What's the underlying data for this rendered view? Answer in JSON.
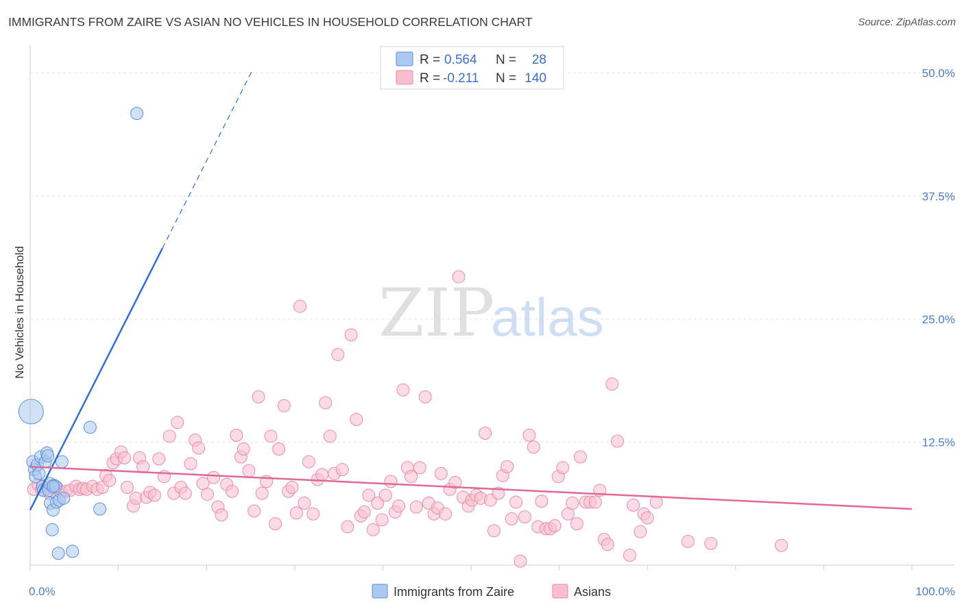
{
  "title": "IMMIGRANTS FROM ZAIRE VS ASIAN NO VEHICLES IN HOUSEHOLD CORRELATION CHART",
  "source": "Source: ZipAtlas.com",
  "watermark": {
    "zip": "ZIP",
    "atlas": "atlas"
  },
  "colors": {
    "blue_fill": "#aac8f0",
    "blue_stroke": "#5b8fd6",
    "blue_line": "#2f6fcf",
    "pink_fill": "#f7bfd0",
    "pink_stroke": "#e98aa8",
    "pink_line": "#e0679a",
    "tick_text": "#4a7cc7",
    "grid": "#e3e3e3"
  },
  "legend": {
    "rows": [
      {
        "r_label": "R =",
        "r_value": "0.564",
        "n_label": "N =",
        "n_value": "28"
      },
      {
        "r_label": "R =",
        "r_value": "-0.211",
        "n_label": "N =",
        "n_value": "140"
      }
    ]
  },
  "chart_data": {
    "type": "scatter",
    "ylabel": "No Vehicles in Household",
    "xlim": [
      0,
      100
    ],
    "ylim": [
      0,
      52
    ],
    "x_tick_labels": [
      {
        "value": 0,
        "label": "0.0%"
      },
      {
        "value": 100,
        "label": "100.0%"
      }
    ],
    "y_tick_labels": [
      {
        "value": 12.5,
        "label": "12.5%"
      },
      {
        "value": 25.0,
        "label": "25.0%"
      },
      {
        "value": 37.5,
        "label": "37.5%"
      },
      {
        "value": 50.0,
        "label": "50.0%"
      }
    ],
    "grid": true,
    "legend_position": "top-center",
    "series": [
      {
        "name": "Immigrants from Zaire",
        "points": [
          [
            0.1,
            15.6,
            3
          ],
          [
            0.3,
            10.5,
            1
          ],
          [
            0.5,
            9.7,
            1
          ],
          [
            0.6,
            9.0,
            1
          ],
          [
            0.8,
            10.2,
            1
          ],
          [
            1.0,
            9.3,
            1
          ],
          [
            1.2,
            11.0,
            1
          ],
          [
            1.4,
            8.0,
            1
          ],
          [
            1.5,
            7.6,
            1
          ],
          [
            1.7,
            10.5,
            1
          ],
          [
            1.9,
            11.4,
            1
          ],
          [
            2.0,
            11.1,
            1
          ],
          [
            2.1,
            7.6,
            1
          ],
          [
            2.2,
            8.3,
            1
          ],
          [
            2.3,
            6.3,
            1
          ],
          [
            2.5,
            3.6,
            1
          ],
          [
            2.6,
            5.6,
            1
          ],
          [
            2.7,
            8.1,
            1
          ],
          [
            2.9,
            8.0,
            1
          ],
          [
            3.0,
            6.4,
            1
          ],
          [
            3.3,
            6.6,
            1
          ],
          [
            2.6,
            8.0,
            1
          ],
          [
            3.8,
            6.8,
            1
          ],
          [
            3.6,
            10.5,
            1
          ],
          [
            6.8,
            14.0,
            1
          ],
          [
            7.9,
            5.7,
            1
          ],
          [
            3.2,
            1.2,
            1
          ],
          [
            4.8,
            1.4,
            1
          ],
          [
            12.1,
            45.9,
            1
          ]
        ]
      },
      {
        "name": "Asians",
        "points": [
          [
            0.4,
            7.7,
            1
          ],
          [
            0.9,
            8.2,
            1
          ],
          [
            1.3,
            7.7,
            1
          ],
          [
            1.8,
            8.1,
            1
          ],
          [
            2.2,
            7.3,
            1
          ],
          [
            2.5,
            7.9,
            1
          ],
          [
            3.0,
            7.9,
            1
          ],
          [
            3.5,
            7.4,
            1
          ],
          [
            4.0,
            7.5,
            1
          ],
          [
            4.5,
            7.6,
            1
          ],
          [
            5.2,
            8.0,
            1
          ],
          [
            5.6,
            7.7,
            1
          ],
          [
            6.0,
            7.8,
            1
          ],
          [
            6.4,
            7.7,
            1
          ],
          [
            7.1,
            8.0,
            1
          ],
          [
            7.6,
            7.7,
            1
          ],
          [
            8.2,
            7.9,
            1
          ],
          [
            8.6,
            9.1,
            1
          ],
          [
            9.0,
            8.6,
            1
          ],
          [
            9.4,
            10.4,
            1
          ],
          [
            9.8,
            10.8,
            1
          ],
          [
            10.3,
            11.5,
            1
          ],
          [
            10.7,
            10.9,
            1
          ],
          [
            11.0,
            7.9,
            1
          ],
          [
            11.7,
            6.0,
            1
          ],
          [
            12.0,
            6.8,
            1
          ],
          [
            12.4,
            10.9,
            1
          ],
          [
            12.8,
            10.0,
            1
          ],
          [
            13.2,
            6.9,
            1
          ],
          [
            13.6,
            7.4,
            1
          ],
          [
            14.1,
            7.1,
            1
          ],
          [
            14.6,
            10.8,
            1
          ],
          [
            15.2,
            9.0,
            1
          ],
          [
            15.8,
            13.1,
            1
          ],
          [
            16.3,
            7.3,
            1
          ],
          [
            16.7,
            14.5,
            1
          ],
          [
            17.1,
            7.9,
            1
          ],
          [
            17.6,
            7.3,
            1
          ],
          [
            18.2,
            10.3,
            1
          ],
          [
            18.7,
            12.7,
            1
          ],
          [
            19.1,
            11.9,
            1
          ],
          [
            19.6,
            8.3,
            1
          ],
          [
            20.1,
            7.2,
            1
          ],
          [
            20.8,
            8.9,
            1
          ],
          [
            21.3,
            5.9,
            1
          ],
          [
            21.7,
            5.1,
            1
          ],
          [
            22.3,
            8.2,
            1
          ],
          [
            22.9,
            7.5,
            1
          ],
          [
            23.4,
            13.2,
            1
          ],
          [
            23.9,
            11.0,
            1
          ],
          [
            24.2,
            11.8,
            1
          ],
          [
            24.8,
            9.6,
            1
          ],
          [
            25.4,
            5.5,
            1
          ],
          [
            25.9,
            17.1,
            1
          ],
          [
            26.3,
            7.3,
            1
          ],
          [
            26.8,
            8.5,
            1
          ],
          [
            27.3,
            13.1,
            1
          ],
          [
            27.8,
            4.2,
            1
          ],
          [
            28.2,
            11.8,
            1
          ],
          [
            28.8,
            16.2,
            1
          ],
          [
            29.3,
            7.5,
            1
          ],
          [
            29.7,
            7.9,
            1
          ],
          [
            30.2,
            5.3,
            1
          ],
          [
            30.6,
            26.3,
            1
          ],
          [
            31.1,
            6.3,
            1
          ],
          [
            31.6,
            10.5,
            1
          ],
          [
            32.1,
            5.2,
            1
          ],
          [
            32.6,
            8.7,
            1
          ],
          [
            33.1,
            9.2,
            1
          ],
          [
            33.5,
            16.5,
            1
          ],
          [
            34.0,
            13.1,
            1
          ],
          [
            34.5,
            9.3,
            1
          ],
          [
            34.9,
            21.4,
            1
          ],
          [
            35.4,
            9.7,
            1
          ],
          [
            36.0,
            3.9,
            1
          ],
          [
            36.4,
            23.4,
            1
          ],
          [
            37.0,
            14.8,
            1
          ],
          [
            37.5,
            5.0,
            1
          ],
          [
            37.9,
            5.4,
            1
          ],
          [
            38.4,
            7.1,
            1
          ],
          [
            38.9,
            3.6,
            1
          ],
          [
            39.4,
            6.3,
            1
          ],
          [
            39.9,
            4.6,
            1
          ],
          [
            40.3,
            7.1,
            1
          ],
          [
            40.9,
            8.5,
            1
          ],
          [
            41.4,
            5.4,
            1
          ],
          [
            41.8,
            6.0,
            1
          ],
          [
            42.3,
            17.8,
            1
          ],
          [
            42.8,
            9.9,
            1
          ],
          [
            43.2,
            9.0,
            1
          ],
          [
            43.8,
            5.9,
            1
          ],
          [
            44.2,
            9.9,
            1
          ],
          [
            44.8,
            17.1,
            1
          ],
          [
            45.2,
            6.3,
            1
          ],
          [
            45.8,
            5.2,
            1
          ],
          [
            46.2,
            5.8,
            1
          ],
          [
            46.6,
            9.3,
            1
          ],
          [
            47.1,
            5.2,
            1
          ],
          [
            47.6,
            7.7,
            1
          ],
          [
            48.2,
            8.4,
            1
          ],
          [
            48.6,
            29.3,
            1
          ],
          [
            49.1,
            6.9,
            1
          ],
          [
            49.7,
            6.0,
            1
          ],
          [
            50.1,
            6.6,
            1
          ],
          [
            50.6,
            7.1,
            1
          ],
          [
            51.1,
            6.8,
            1
          ],
          [
            51.6,
            13.4,
            1
          ],
          [
            52.2,
            6.6,
            1
          ],
          [
            52.6,
            3.5,
            1
          ],
          [
            53.1,
            7.3,
            1
          ],
          [
            53.6,
            9.1,
            1
          ],
          [
            54.1,
            10.0,
            1
          ],
          [
            54.6,
            4.7,
            1
          ],
          [
            55.1,
            6.4,
            1
          ],
          [
            55.6,
            0.4,
            1
          ],
          [
            56.1,
            4.9,
            1
          ],
          [
            56.6,
            13.2,
            1
          ],
          [
            57.1,
            12.0,
            1
          ],
          [
            57.6,
            3.9,
            1
          ],
          [
            58.0,
            6.5,
            1
          ],
          [
            58.5,
            3.7,
            1
          ],
          [
            59.0,
            3.7,
            1
          ],
          [
            59.5,
            4.0,
            1
          ],
          [
            59.9,
            9.0,
            1
          ],
          [
            60.4,
            9.9,
            1
          ],
          [
            61.0,
            5.2,
            1
          ],
          [
            61.5,
            6.3,
            1
          ],
          [
            62.0,
            4.2,
            1
          ],
          [
            62.4,
            11.0,
            1
          ],
          [
            63.0,
            6.4,
            1
          ],
          [
            63.5,
            6.4,
            1
          ],
          [
            64.1,
            6.4,
            1
          ],
          [
            64.6,
            7.6,
            1
          ],
          [
            65.1,
            2.6,
            1
          ],
          [
            65.5,
            2.1,
            1
          ],
          [
            66.0,
            18.4,
            1
          ],
          [
            66.6,
            12.6,
            1
          ],
          [
            68.0,
            1.0,
            1
          ],
          [
            68.4,
            6.1,
            1
          ],
          [
            69.2,
            3.4,
            1
          ],
          [
            69.6,
            5.2,
            1
          ],
          [
            70.0,
            4.8,
            1
          ],
          [
            71.0,
            6.4,
            1
          ],
          [
            74.6,
            2.4,
            1
          ],
          [
            77.2,
            2.2,
            1
          ],
          [
            85.2,
            2.0,
            1
          ]
        ]
      }
    ],
    "trend_lines": [
      {
        "series": "Immigrants from Zaire",
        "solid": [
          [
            0,
            5.6
          ],
          [
            15,
            32.2
          ]
        ],
        "dashed": [
          [
            15,
            32.2
          ],
          [
            25.2,
            50.3
          ]
        ]
      },
      {
        "series": "Asians",
        "solid": [
          [
            0,
            10.0
          ],
          [
            100,
            5.7
          ]
        ]
      }
    ]
  }
}
